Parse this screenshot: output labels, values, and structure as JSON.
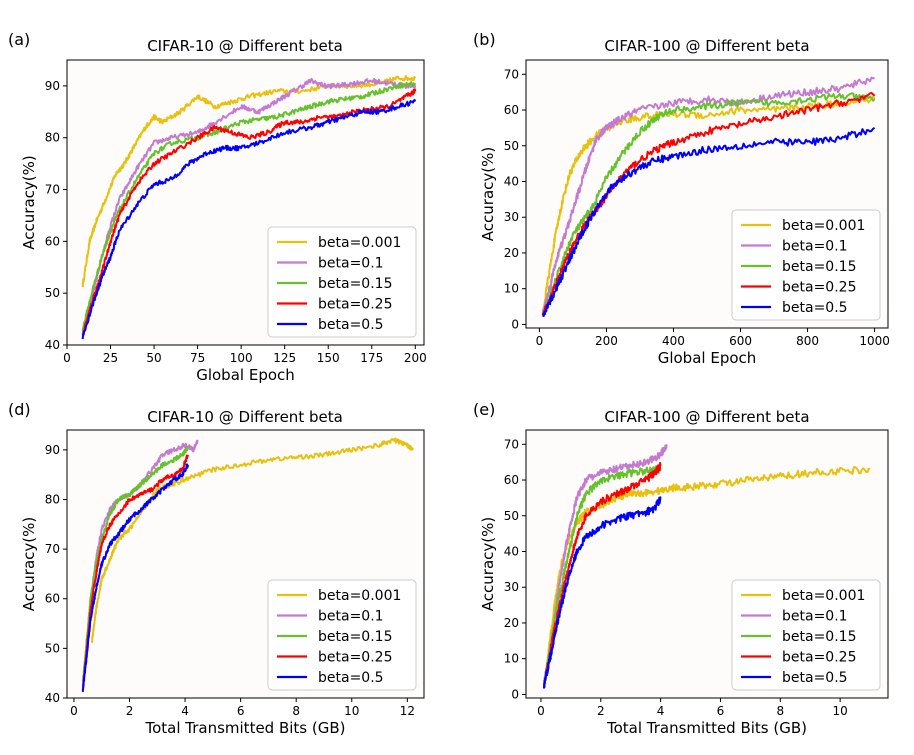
{
  "figure": {
    "series_colors": [
      "#e8c10e",
      "#c579d0",
      "#66c22c",
      "#ff0000",
      "#0000ff"
    ]
  },
  "chart_data": [
    {
      "panel_label": "(a)",
      "type": "line",
      "title": "CIFAR-10 @ Different beta",
      "xlabel": "Global Epoch",
      "ylabel": "Accuracy(%)",
      "xlim": [
        0,
        205
      ],
      "ylim": [
        40,
        95
      ],
      "xticks": [
        0,
        25,
        50,
        75,
        100,
        125,
        150,
        175,
        200
      ],
      "yticks": [
        40,
        50,
        60,
        70,
        80,
        90
      ],
      "legend_position": "lower-right",
      "noise": 0.45,
      "series": [
        {
          "name": "beta=0.001",
          "x": [
            9,
            13,
            17,
            22,
            28,
            33,
            38,
            45,
            50,
            55,
            65,
            75,
            85,
            95,
            105,
            120,
            135,
            150,
            165,
            180,
            190,
            200
          ],
          "y": [
            51.5,
            60,
            64,
            68,
            73,
            75,
            78,
            82,
            84,
            83,
            85,
            88,
            86,
            87,
            88,
            89,
            89,
            90,
            90,
            90.5,
            91.5,
            91.5
          ]
        },
        {
          "name": "beta=0.1",
          "x": [
            9,
            15,
            20,
            25,
            30,
            40,
            50,
            60,
            75,
            85,
            100,
            110,
            120,
            130,
            140,
            148,
            155,
            165,
            175,
            185,
            195,
            200
          ],
          "y": [
            42,
            50,
            57,
            63,
            68,
            74,
            79,
            80,
            81,
            83,
            86,
            85,
            87,
            89,
            91,
            90,
            90,
            90.5,
            91,
            90.5,
            90,
            90
          ]
        },
        {
          "name": "beta=0.15",
          "x": [
            9,
            15,
            20,
            25,
            30,
            40,
            50,
            60,
            75,
            85,
            100,
            110,
            120,
            130,
            140,
            150,
            160,
            170,
            180,
            190,
            200
          ],
          "y": [
            43,
            51,
            57,
            62,
            66,
            72,
            77,
            79,
            80,
            81,
            83,
            83.5,
            84,
            85,
            86,
            87,
            87.5,
            88,
            89,
            90,
            90.5
          ]
        },
        {
          "name": "beta=0.25",
          "x": [
            9,
            15,
            20,
            25,
            30,
            40,
            50,
            60,
            75,
            85,
            95,
            105,
            115,
            125,
            135,
            145,
            155,
            165,
            175,
            185,
            195,
            200
          ],
          "y": [
            42,
            49,
            54,
            60,
            65,
            71,
            75,
            77,
            80,
            82,
            81,
            80,
            81,
            83,
            83,
            84,
            84,
            85,
            85.5,
            86,
            88,
            89
          ]
        },
        {
          "name": "beta=0.5",
          "x": [
            9,
            15,
            20,
            25,
            30,
            40,
            50,
            60,
            70,
            80,
            90,
            100,
            110,
            125,
            140,
            150,
            160,
            170,
            180,
            190,
            200
          ],
          "y": [
            41.5,
            48,
            53,
            57,
            62,
            67,
            71,
            72,
            75,
            77,
            78,
            78,
            79,
            81,
            82,
            83,
            84,
            85,
            85,
            86,
            87
          ]
        }
      ]
    },
    {
      "panel_label": "(b)",
      "type": "line",
      "title": "CIFAR-100 @ Different beta",
      "xlabel": "Global Epoch",
      "ylabel": "Accuracy(%)",
      "xlim": [
        -40,
        1040
      ],
      "ylim": [
        -1,
        74
      ],
      "xticks": [
        0,
        200,
        400,
        600,
        800,
        1000
      ],
      "yticks": [
        0,
        10,
        20,
        30,
        40,
        50,
        60,
        70
      ],
      "legend_position": "lower-right",
      "noise": 1.0,
      "series": [
        {
          "name": "beta=0.001",
          "x": [
            10,
            30,
            50,
            70,
            90,
            110,
            130,
            160,
            200,
            250,
            300,
            400,
            500,
            600,
            700,
            800,
            900,
            1000
          ],
          "y": [
            3,
            15,
            26,
            35,
            42,
            46,
            49,
            52,
            55,
            57,
            58,
            59,
            58.5,
            60,
            60,
            61,
            62,
            63
          ]
        },
        {
          "name": "beta=0.1",
          "x": [
            10,
            30,
            50,
            80,
            110,
            140,
            170,
            200,
            250,
            300,
            400,
            500,
            600,
            700,
            800,
            900,
            1000
          ],
          "y": [
            3,
            10,
            18,
            26,
            35,
            44,
            52,
            55,
            58,
            60,
            62,
            63,
            62,
            64,
            65,
            66,
            69
          ]
        },
        {
          "name": "beta=0.15",
          "x": [
            10,
            40,
            70,
            100,
            130,
            160,
            200,
            250,
            300,
            350,
            400,
            500,
            600,
            700,
            800,
            900,
            1000
          ],
          "y": [
            2.5,
            10,
            18,
            25,
            29,
            33,
            41,
            48,
            54,
            58,
            60,
            61,
            62,
            62,
            63,
            64,
            63
          ]
        },
        {
          "name": "beta=0.25",
          "x": [
            10,
            40,
            70,
            100,
            130,
            160,
            200,
            250,
            300,
            350,
            400,
            500,
            600,
            700,
            800,
            900,
            1000
          ],
          "y": [
            2.5,
            9,
            16,
            22,
            27,
            31,
            36,
            42,
            46,
            49,
            51,
            54,
            56,
            58,
            60,
            62,
            64
          ]
        },
        {
          "name": "beta=0.5",
          "x": [
            10,
            40,
            70,
            100,
            130,
            160,
            200,
            250,
            300,
            350,
            400,
            500,
            600,
            700,
            800,
            900,
            1000
          ],
          "y": [
            2.5,
            8,
            14,
            20,
            26,
            31,
            37,
            41,
            44,
            46,
            47,
            49,
            50,
            51,
            51,
            52,
            55
          ]
        }
      ]
    },
    {
      "panel_label": "(d)",
      "type": "line",
      "title": "CIFAR-10 @ Different beta",
      "xlabel": "Total Transmitted Bits (GB)",
      "ylabel": "Accuracy(%)",
      "xlim": [
        -0.25,
        12.6
      ],
      "ylim": [
        40,
        94
      ],
      "xticks": [
        0,
        2,
        4,
        6,
        8,
        10,
        12
      ],
      "yticks": [
        40,
        50,
        60,
        70,
        80,
        90
      ],
      "legend_position": "lower-right",
      "noise": 0.45,
      "series": [
        {
          "name": "beta=0.001",
          "x": [
            0.65,
            0.8,
            1.0,
            1.3,
            1.6,
            2.0,
            2.5,
            3.0,
            3.5,
            4.0,
            5.0,
            6.0,
            7.0,
            8.0,
            9.0,
            10.0,
            11.0,
            11.5,
            12.0,
            12.2
          ],
          "y": [
            51.5,
            58,
            64,
            68,
            72,
            74,
            78,
            82,
            83,
            84,
            86,
            87,
            88,
            88.5,
            89,
            90,
            91,
            92,
            91,
            90
          ]
        },
        {
          "name": "beta=0.1",
          "x": [
            0.32,
            0.45,
            0.6,
            0.8,
            1.0,
            1.3,
            1.6,
            2.0,
            2.4,
            2.8,
            3.2,
            3.6,
            4.0,
            4.3,
            4.45
          ],
          "y": [
            42,
            50,
            60,
            68,
            74,
            78,
            80,
            81,
            83,
            86,
            89,
            90,
            91,
            90,
            92
          ]
        },
        {
          "name": "beta=0.15",
          "x": [
            0.32,
            0.45,
            0.6,
            0.8,
            1.0,
            1.3,
            1.6,
            2.0,
            2.4,
            2.8,
            3.2,
            3.6,
            3.9,
            4.1
          ],
          "y": [
            43,
            51,
            60,
            67,
            72,
            77,
            80,
            81,
            83,
            85,
            87,
            88,
            89,
            90.5
          ]
        },
        {
          "name": "beta=0.25",
          "x": [
            0.32,
            0.45,
            0.6,
            0.8,
            1.0,
            1.3,
            1.6,
            2.0,
            2.4,
            2.8,
            3.2,
            3.6,
            3.9,
            4.1
          ],
          "y": [
            42,
            49,
            58,
            65,
            71,
            75,
            77,
            80,
            81,
            82,
            84,
            85,
            86,
            89
          ]
        },
        {
          "name": "beta=0.5",
          "x": [
            0.32,
            0.45,
            0.6,
            0.8,
            1.0,
            1.3,
            1.6,
            2.0,
            2.4,
            2.8,
            3.2,
            3.6,
            3.9,
            4.1
          ],
          "y": [
            41.5,
            48,
            56,
            62,
            67,
            71,
            73,
            76,
            78,
            80,
            82,
            84,
            85,
            87
          ]
        }
      ]
    },
    {
      "panel_label": "(e)",
      "type": "line",
      "title": "CIFAR-100 @ Different beta",
      "xlabel": "Total Transmitted Bits (GB)",
      "ylabel": "Accuracy(%)",
      "xlim": [
        -0.5,
        11.6
      ],
      "ylim": [
        -1,
        74
      ],
      "xticks": [
        0,
        2,
        4,
        6,
        8,
        10
      ],
      "yticks": [
        0,
        10,
        20,
        30,
        40,
        50,
        60,
        70
      ],
      "legend_position": "lower-right",
      "noise": 1.0,
      "series": [
        {
          "name": "beta=0.001",
          "x": [
            0.12,
            0.3,
            0.5,
            0.7,
            0.9,
            1.2,
            1.5,
            2.0,
            2.5,
            3.0,
            3.5,
            4.0,
            4.5,
            5.0,
            6.0,
            7.0,
            8.0,
            9.0,
            10.0,
            11.0
          ],
          "y": [
            3,
            15,
            28,
            37,
            43,
            48,
            51,
            53,
            55,
            56,
            56.5,
            57,
            58,
            58,
            59,
            60,
            61,
            62,
            62.5,
            63
          ]
        },
        {
          "name": "beta=0.1",
          "x": [
            0.1,
            0.25,
            0.4,
            0.6,
            0.8,
            1.0,
            1.2,
            1.5,
            2.0,
            2.5,
            3.0,
            3.5,
            4.0,
            4.2
          ],
          "y": [
            3,
            10,
            18,
            30,
            40,
            48,
            55,
            60,
            62,
            63,
            64,
            65,
            67,
            70
          ]
        },
        {
          "name": "beta=0.15",
          "x": [
            0.1,
            0.25,
            0.4,
            0.6,
            0.8,
            1.0,
            1.2,
            1.5,
            2.0,
            2.5,
            3.0,
            3.5,
            3.8,
            4.0
          ],
          "y": [
            2.5,
            10,
            18,
            27,
            35,
            42,
            50,
            56,
            60,
            61,
            62,
            62.5,
            63,
            63
          ]
        },
        {
          "name": "beta=0.25",
          "x": [
            0.1,
            0.25,
            0.4,
            0.6,
            0.8,
            1.0,
            1.2,
            1.5,
            2.0,
            2.5,
            3.0,
            3.5,
            3.8,
            4.0
          ],
          "y": [
            2.5,
            9,
            16,
            24,
            31,
            38,
            44,
            50,
            54,
            56,
            58,
            60,
            62,
            64
          ]
        },
        {
          "name": "beta=0.5",
          "x": [
            0.1,
            0.25,
            0.4,
            0.6,
            0.8,
            1.0,
            1.2,
            1.5,
            2.0,
            2.5,
            3.0,
            3.5,
            3.8,
            4.0
          ],
          "y": [
            2.5,
            8,
            14,
            22,
            29,
            35,
            40,
            44,
            47,
            49,
            50,
            51,
            52,
            55
          ]
        }
      ]
    }
  ]
}
